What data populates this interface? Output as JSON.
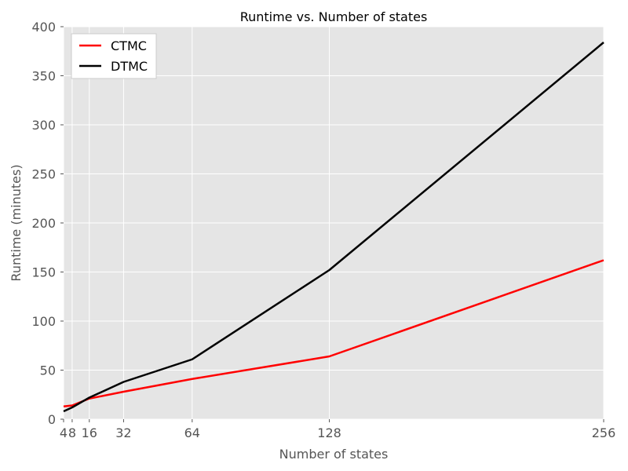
{
  "chart_data": {
    "type": "line",
    "title": "Runtime vs. Number of states",
    "xlabel": "Number of states",
    "ylabel": "Runtime (minutes)",
    "xlim": [
      4,
      256
    ],
    "ylim": [
      0,
      400
    ],
    "xticks": [
      4,
      8,
      16,
      32,
      64,
      128,
      256
    ],
    "xtick_labels": [
      "4",
      "8",
      "16",
      "32",
      "64",
      "128",
      "256"
    ],
    "yticks": [
      0,
      50,
      100,
      150,
      200,
      250,
      300,
      350,
      400
    ],
    "ytick_labels": [
      "0",
      "50",
      "100",
      "150",
      "200",
      "250",
      "300",
      "350",
      "400"
    ],
    "grid": true,
    "legend_position": "top-left",
    "x": [
      4,
      8,
      16,
      32,
      64,
      128,
      256
    ],
    "series": [
      {
        "name": "CTMC",
        "color": "#ff0000",
        "values": [
          13,
          14,
          21,
          28,
          41,
          64,
          162
        ]
      },
      {
        "name": "DTMC",
        "color": "#000000",
        "values": [
          8,
          12,
          22,
          38,
          61,
          152,
          384
        ]
      }
    ],
    "background_color": "#e5e5e5",
    "grid_color": "#ffffff"
  }
}
